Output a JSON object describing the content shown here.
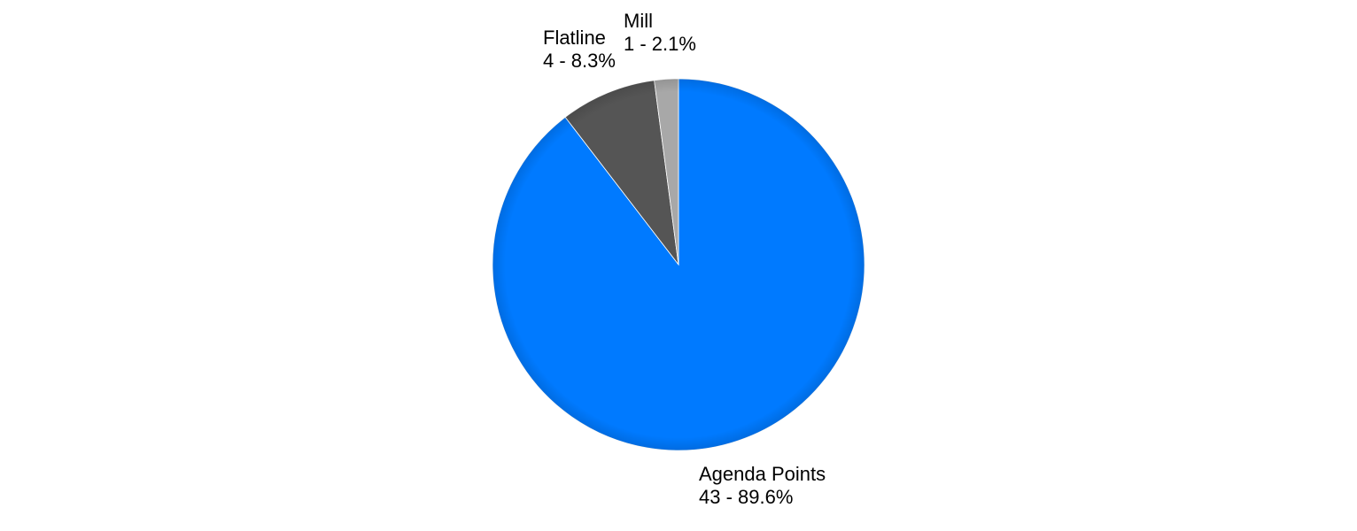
{
  "chart_data": {
    "type": "pie",
    "start_angle_deg": 0,
    "direction": "clockwise",
    "slices": [
      {
        "name": "Agenda Points",
        "value": 43,
        "percent": "89.6%",
        "label_line1": "Agenda Points",
        "label_line2": "43 - 89.6%",
        "color": "#007AFF"
      },
      {
        "name": "Flatline",
        "value": 4,
        "percent": "8.3%",
        "label_line1": "Flatline",
        "label_line2": "4 - 8.3%",
        "color": "#555555"
      },
      {
        "name": "Mill",
        "value": 1,
        "percent": "2.1%",
        "label_line1": "Mill",
        "label_line2": "1 - 2.1%",
        "color": "#A8A8A8"
      }
    ]
  }
}
